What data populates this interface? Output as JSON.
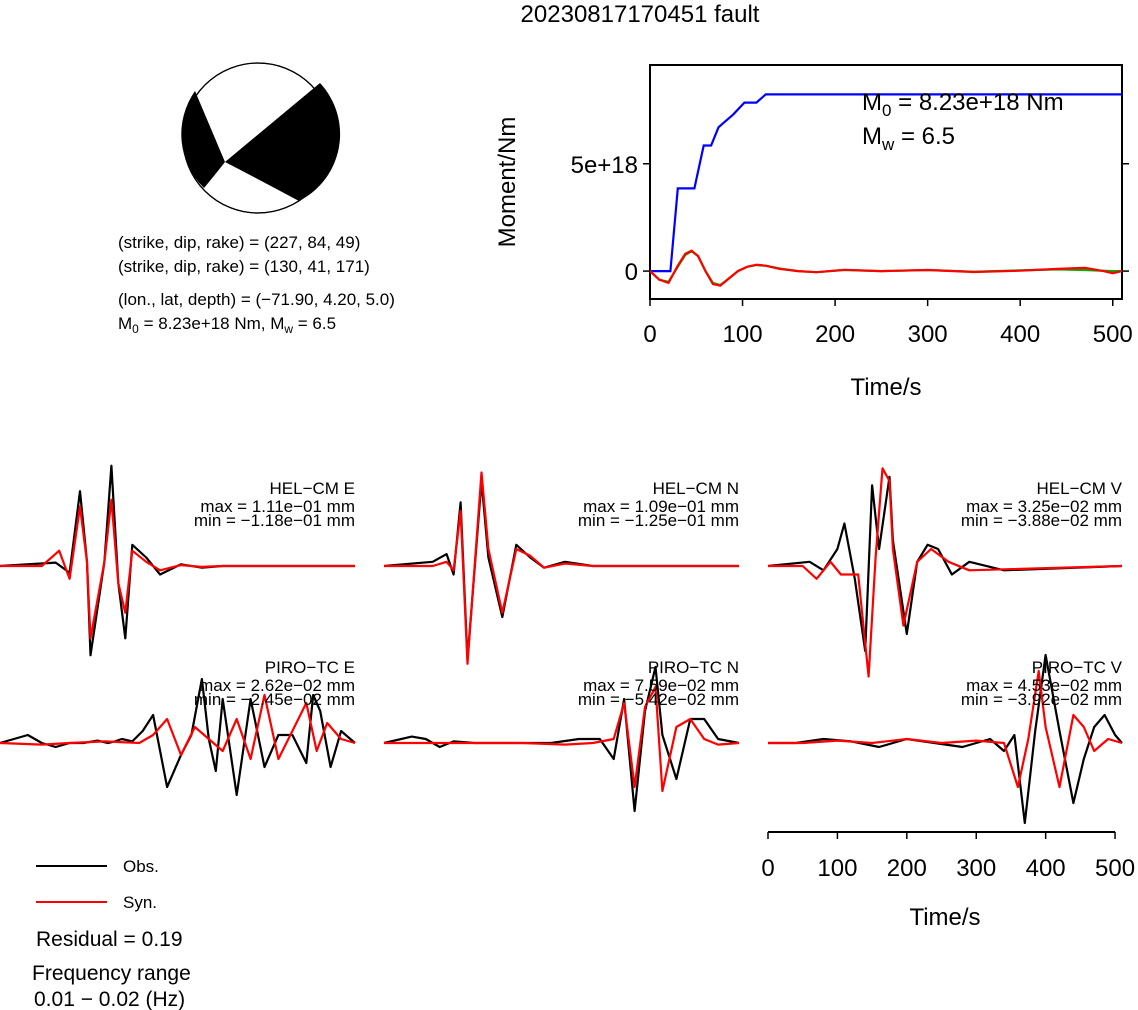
{
  "title": "20230817170451 fault",
  "mechanism": {
    "plane1": "(strike, dip, rake) = (227, 84, 49)",
    "plane2": "(strike, dip, rake) = (130, 41, 171)",
    "location": "(lon., lat, depth) = (−71.90, 4.20, 5.0)",
    "moment_prefix": "M",
    "moment_sub": "0",
    "moment_rest": " = 8.23e+18 Nm, M",
    "mw_sub": "w",
    "mw_rest": " = 6.5"
  },
  "stf_annotation": {
    "m0_prefix": "M",
    "m0_sub": "0",
    "m0_rest": " = 8.23e+18 Nm",
    "mw_prefix": "M",
    "mw_sub": "w",
    "mw_rest": " = 6.5"
  },
  "legend": {
    "obs_label": "Obs.",
    "syn_label": "Syn.",
    "obs_color": "#000000",
    "syn_color": "#ff0000"
  },
  "residual": "Residual = 0.19",
  "freq_title": "Frequency range",
  "freq_value": "0.01 − 0.02 (Hz)",
  "colors": {
    "moment": "#0000ff",
    "stf_a": "#00b000",
    "stf_b": "#ff0000",
    "obs": "#000000",
    "syn": "#ff0000"
  },
  "chart_data": [
    {
      "type": "line",
      "name": "moment-rate",
      "xlabel": "Time/s",
      "ylabel": "Moment/Nm",
      "xlim": [
        0,
        510
      ],
      "ylim": [
        -1.3e+18,
        9.6e+18
      ],
      "xticks": [
        "0",
        "100",
        "200",
        "300",
        "400",
        "500"
      ],
      "yticks": [
        "0",
        "5e+18"
      ],
      "xtick_values": [
        0,
        100,
        200,
        300,
        400,
        500
      ],
      "ytick_values": [
        0,
        5e+18
      ],
      "series": [
        {
          "color": "#0000ff",
          "x": [
            0,
            22,
            30,
            48,
            58,
            66,
            74,
            82,
            90,
            102,
            115,
            125,
            510
          ],
          "y": [
            0,
            0,
            3.85e+18,
            3.85e+18,
            5.85e+18,
            5.85e+18,
            6.7e+18,
            7e+18,
            7.3e+18,
            7.85e+18,
            7.85e+18,
            8.23e+18,
            8.23e+18
          ]
        },
        {
          "color": "#00b000",
          "x": [
            0,
            10,
            20,
            30,
            38,
            45,
            52,
            60,
            68,
            76,
            85,
            95,
            105,
            115,
            125,
            140,
            160,
            180,
            210,
            250,
            300,
            350,
            400,
            440,
            470,
            500,
            510
          ],
          "y": [
            0,
            -4e+17,
            -5e+17,
            2e+17,
            7.5e+17,
            9.2e+17,
            7e+17,
            0,
            -5.5e+17,
            -6.5e+17,
            -3.5e+17,
            0,
            2e+17,
            2.8e+17,
            2.5e+17,
            1.2e+17,
            0,
            -5e+16,
            5e+16,
            0,
            5e+16,
            -3e+16,
            3e+16,
            8e+16,
            5e+16,
            0,
            0
          ]
        },
        {
          "color": "#ff0000",
          "x": [
            0,
            10,
            20,
            30,
            38,
            45,
            52,
            60,
            68,
            76,
            85,
            95,
            105,
            115,
            125,
            140,
            160,
            180,
            210,
            250,
            300,
            350,
            400,
            440,
            470,
            490,
            500,
            510
          ],
          "y": [
            0,
            -4e+17,
            -5.5e+17,
            2.5e+17,
            8e+17,
            9.5e+17,
            7e+17,
            0,
            -6e+17,
            -6.8e+17,
            -3.5e+17,
            0,
            2e+17,
            3e+17,
            2.5e+17,
            1e+17,
            0,
            -5e+16,
            6e+16,
            0,
            5e+16,
            -4e+16,
            2e+16,
            1e+17,
            1.5e+17,
            0,
            -1e+17,
            0
          ]
        }
      ]
    },
    {
      "type": "line",
      "name": "waveforms",
      "xlabel": "Time/s",
      "xlim": [
        0,
        510
      ],
      "xticks": [
        "0",
        "100",
        "200",
        "300",
        "400",
        "500"
      ],
      "xtick_values": [
        0,
        100,
        200,
        300,
        400,
        500
      ],
      "panels": [
        {
          "station": "HEL−CM E",
          "max": "max = 1.11e−01 mm",
          "min": "min = −1.18e−01 mm",
          "obs": {
            "x": [
              0,
              80,
              100,
              115,
              125,
              130,
              150,
              160,
              170,
              180,
              190,
              210,
              230,
              260,
              290,
              320,
              510
            ],
            "y": [
              0,
              0.04,
              -0.08,
              0.88,
              0.05,
              -1.05,
              0.05,
              1.18,
              -0.2,
              -0.85,
              0.25,
              0.1,
              -0.1,
              0.02,
              -0.02,
              0,
              0
            ]
          },
          "syn": {
            "x": [
              0,
              60,
              85,
              100,
              115,
              125,
              130,
              150,
              160,
              170,
              180,
              190,
              210,
              230,
              260,
              290,
              320,
              510
            ],
            "y": [
              0,
              0,
              0.18,
              -0.15,
              0.7,
              0.05,
              -0.85,
              0.05,
              0.78,
              -0.2,
              -0.55,
              0.18,
              0.05,
              -0.05,
              0.01,
              -0.01,
              0,
              0
            ]
          }
        },
        {
          "station": "HEL−CM N",
          "max": "max = 1.09e−01 mm",
          "min": "min = −1.25e−01 mm",
          "obs": {
            "x": [
              0,
              70,
              90,
              100,
              110,
              120,
              140,
              150,
              170,
              190,
              210,
              230,
              260,
              300,
              510
            ],
            "y": [
              0,
              0.05,
              0.14,
              -0.1,
              0.75,
              -1.1,
              1.0,
              0.1,
              -0.6,
              0.25,
              0.1,
              -0.02,
              0.05,
              0,
              0
            ]
          },
          "syn": {
            "x": [
              0,
              70,
              90,
              100,
              110,
              120,
              140,
              150,
              170,
              190,
              210,
              230,
              260,
              300,
              510
            ],
            "y": [
              0,
              0,
              0.05,
              -0.05,
              0.65,
              -1.15,
              1.1,
              0.2,
              -0.55,
              0.2,
              0.12,
              -0.02,
              0.03,
              0,
              0
            ]
          }
        },
        {
          "station": "HEL−CM V",
          "max": "max = 3.25e−02 mm",
          "min": "min = −3.88e−02 mm",
          "obs": {
            "x": [
              0,
              60,
              80,
              100,
              110,
              125,
              140,
              150,
              160,
              175,
              180,
              200,
              215,
              230,
              245,
              265,
              290,
              340,
              510
            ],
            "y": [
              0,
              0.05,
              -0.05,
              0.2,
              0.5,
              -0.15,
              -1.0,
              0.95,
              0.2,
              1.05,
              0.3,
              -0.8,
              0.05,
              0.25,
              0.2,
              -0.1,
              0.05,
              -0.05,
              0
            ]
          },
          "syn": {
            "x": [
              0,
              50,
              70,
              90,
              105,
              130,
              145,
              155,
              165,
              175,
              180,
              195,
              215,
              235,
              260,
              290,
              510
            ],
            "y": [
              0,
              0,
              -0.15,
              0.05,
              -0.1,
              -0.1,
              -1.3,
              0.1,
              1.15,
              1.0,
              0.2,
              -0.7,
              0.05,
              0.2,
              0.05,
              -0.05,
              0
            ]
          }
        },
        {
          "station": "PIRO−TC E",
          "max": "max = 2.62e−02 mm",
          "min": "min = −2.45e−02 mm",
          "obs": {
            "x": [
              0,
              20,
              40,
              60,
              80,
              100,
              120,
              140,
              155,
              165,
              175,
              190,
              205,
              220,
              240,
              260,
              275,
              290,
              300,
              310,
              320,
              340,
              360,
              380,
              400,
              420,
              440,
              450,
              460,
              475,
              490,
              510
            ],
            "y": [
              0,
              0.05,
              0.1,
              0,
              -0.05,
              0,
              0,
              0.03,
              0,
              0.02,
              0.05,
              0.02,
              0.15,
              0.35,
              -0.55,
              -0.15,
              0.1,
              0.8,
              0.05,
              -0.35,
              0.55,
              -0.65,
              0.55,
              -0.3,
              0.1,
              0.1,
              -0.25,
              0.6,
              0.4,
              -0.3,
              0.15,
              0
            ]
          },
          "syn": {
            "x": [
              0,
              60,
              100,
              150,
              200,
              220,
              240,
              260,
              280,
              300,
              320,
              340,
              360,
              380,
              400,
              420,
              440,
              455,
              470,
              490,
              510
            ],
            "y": [
              0,
              -0.02,
              0,
              0.02,
              0,
              0.1,
              0.3,
              -0.15,
              0.2,
              0.05,
              -0.1,
              0.3,
              -0.2,
              0.6,
              -0.2,
              0.15,
              0.5,
              -0.1,
              0.25,
              0.05,
              0
            ]
          }
        },
        {
          "station": "PIRO−TC N",
          "max": "max = 7.59e−02 mm",
          "min": "min = −5.42e−02 mm",
          "obs": {
            "x": [
              0,
              40,
              60,
              80,
              100,
              130,
              160,
              200,
              240,
              280,
              310,
              330,
              345,
              360,
              375,
              390,
              400,
              420,
              440,
              460,
              480,
              510
            ],
            "y": [
              0,
              0.08,
              0.05,
              -0.05,
              0.02,
              0,
              0,
              0,
              0,
              0.05,
              0.05,
              -0.2,
              0.55,
              -0.85,
              0.4,
              0.95,
              0.1,
              -0.45,
              0.3,
              0.3,
              0.05,
              0
            ]
          },
          "syn": {
            "x": [
              0,
              100,
              200,
              260,
              300,
              330,
              345,
              360,
              375,
              390,
              400,
              420,
              440,
              460,
              480,
              510
            ],
            "y": [
              0,
              0,
              0,
              -0.02,
              0,
              0.05,
              0.5,
              -0.55,
              0.45,
              0.7,
              -0.6,
              0.2,
              0.3,
              0.05,
              -0.02,
              0
            ]
          }
        },
        {
          "station": "PIRO−TC V",
          "max": "max = 4.53e−02 mm",
          "min": "min = −3.92e−02 mm",
          "obs": {
            "x": [
              0,
              40,
              80,
              120,
              160,
              200,
              240,
              280,
              320,
              340,
              355,
              370,
              385,
              400,
              420,
              440,
              455,
              470,
              485,
              500,
              510
            ],
            "y": [
              0,
              0,
              0.05,
              0.02,
              -0.05,
              0.05,
              0,
              -0.05,
              0.05,
              -0.1,
              0.1,
              -1.0,
              0.15,
              1.1,
              0.15,
              -0.75,
              -0.2,
              0.2,
              0.35,
              0.1,
              0
            ]
          },
          "syn": {
            "x": [
              0,
              50,
              100,
              150,
              200,
              250,
              300,
              340,
              360,
              375,
              390,
              400,
              420,
              440,
              455,
              470,
              490,
              510
            ],
            "y": [
              0,
              0,
              0.03,
              0,
              0.05,
              0,
              0.03,
              0,
              -0.55,
              0.05,
              0.9,
              0.2,
              -0.55,
              0.35,
              0.2,
              -0.1,
              0.05,
              0
            ]
          }
        }
      ]
    }
  ]
}
